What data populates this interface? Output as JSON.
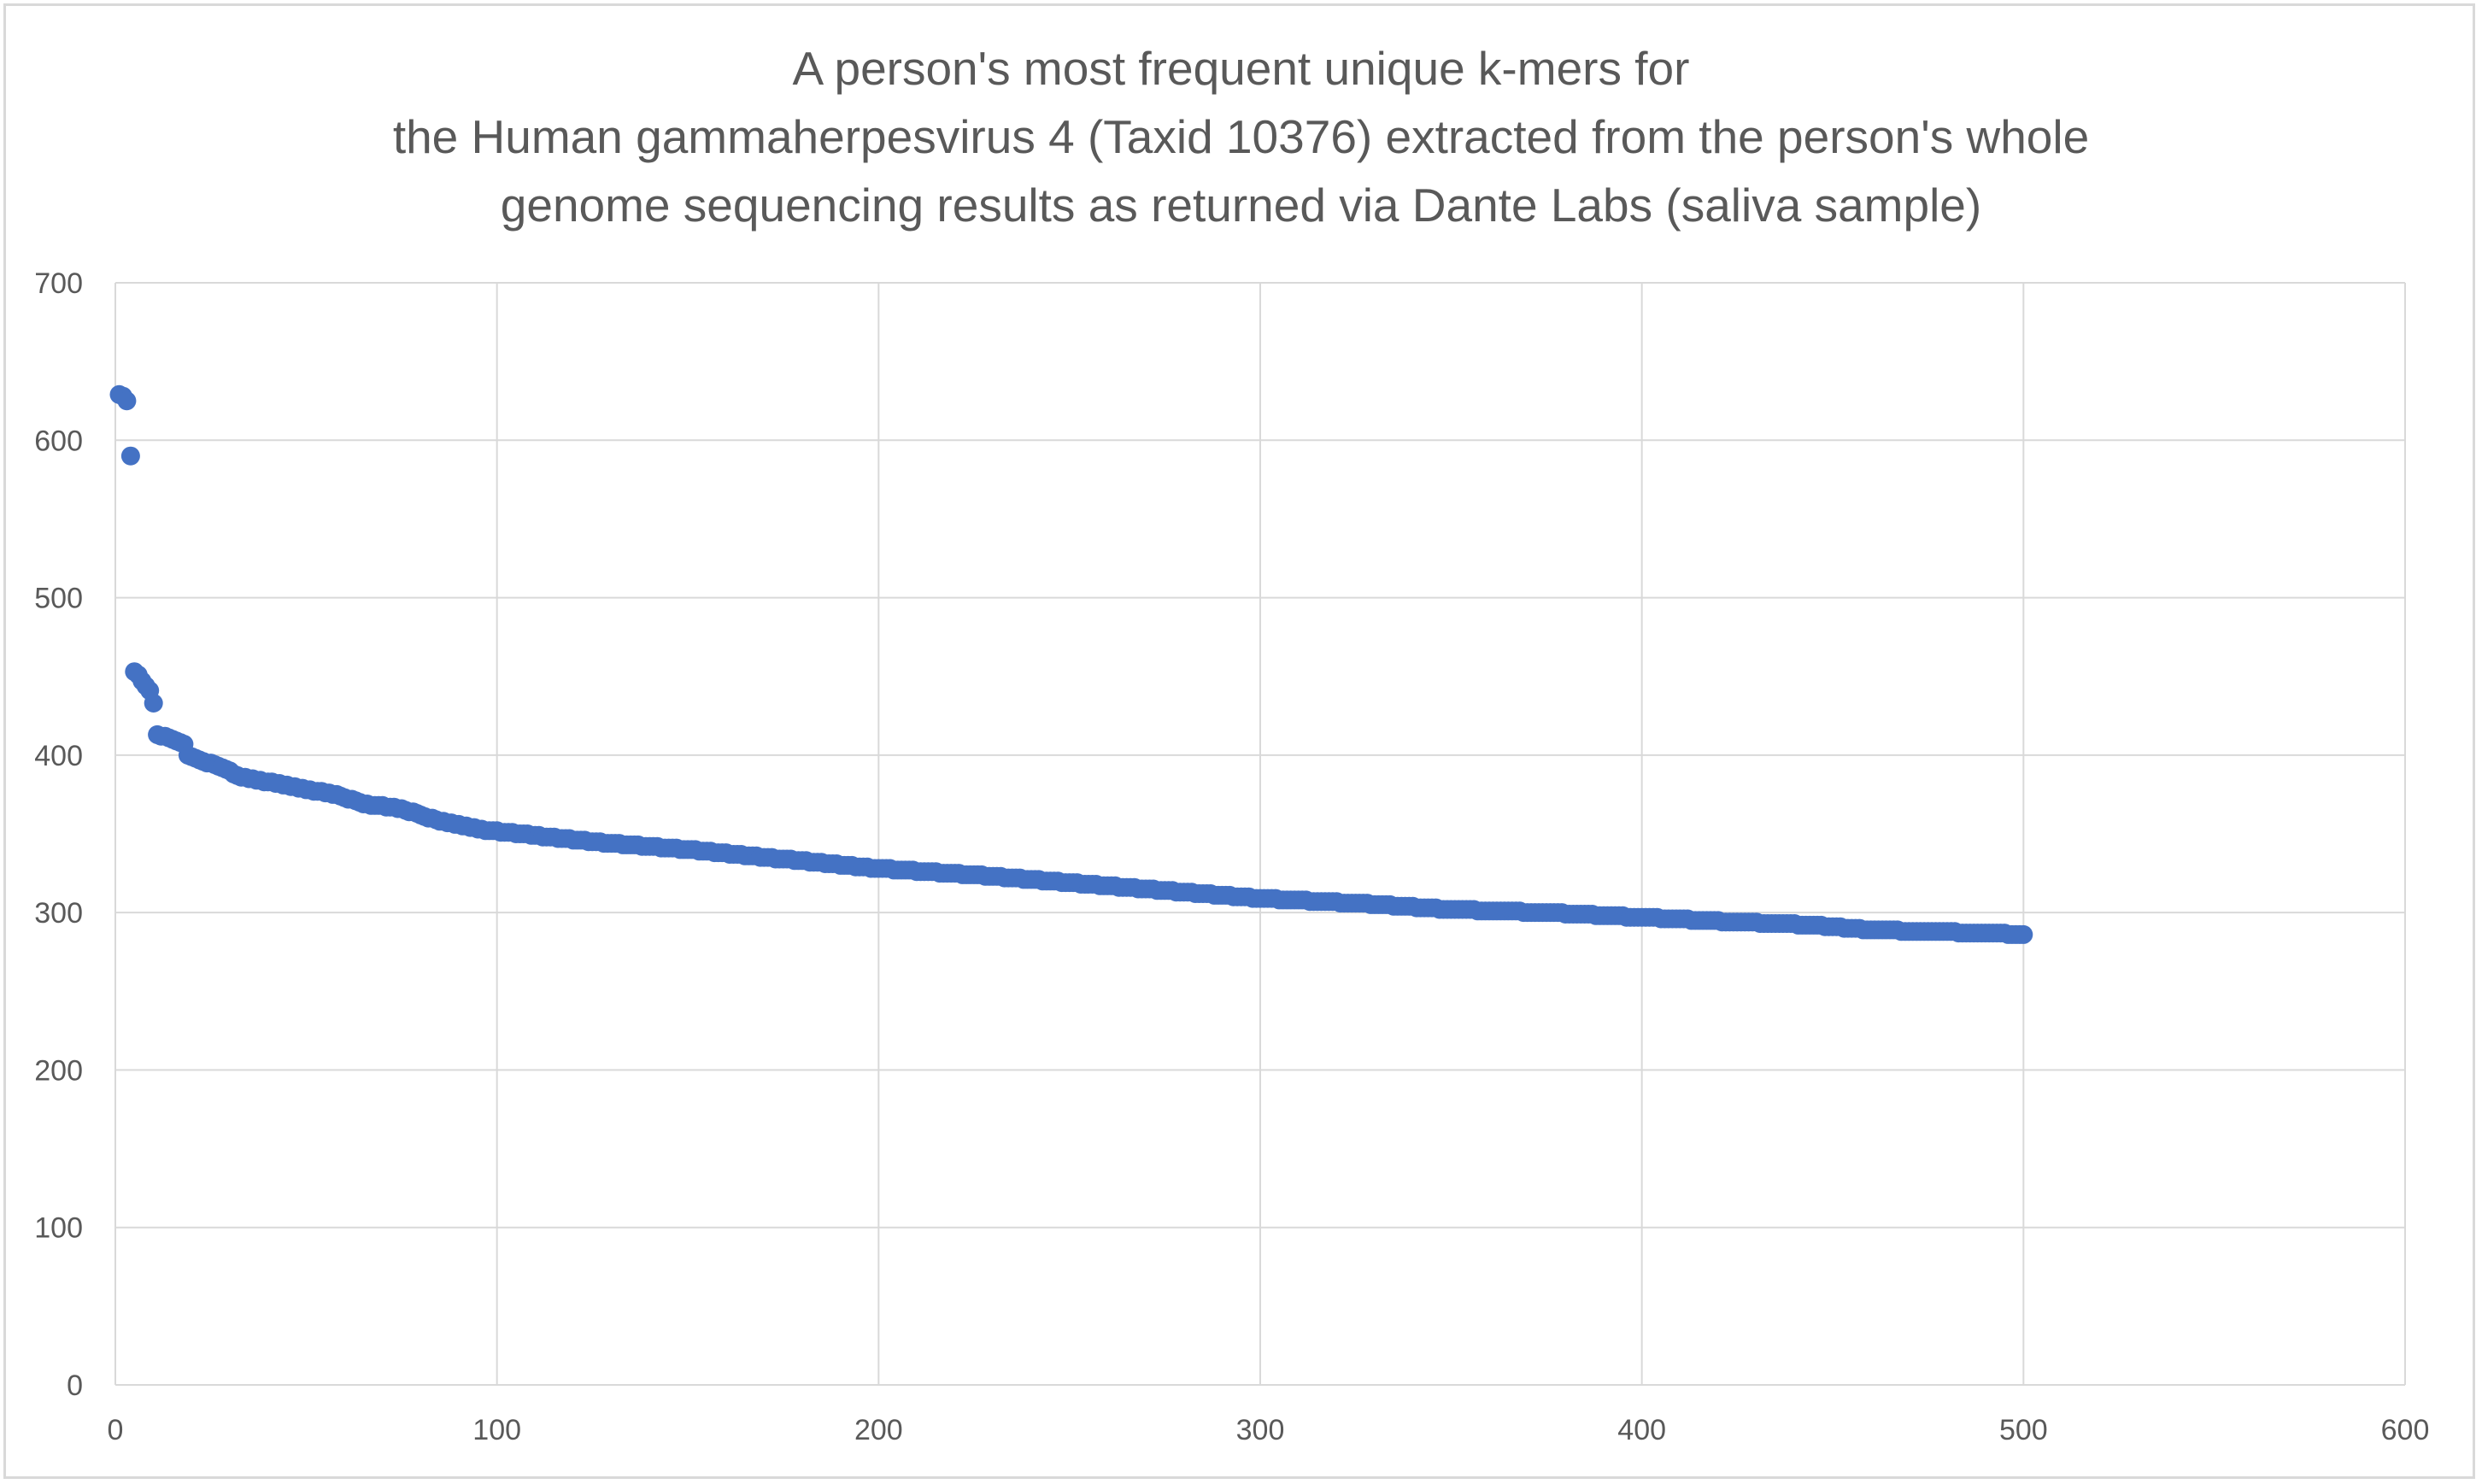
{
  "chart_data": {
    "type": "scatter",
    "title_lines": [
      "A person's most frequent unique k-mers for",
      "the Human gammaherpesvirus 4 (Taxid 10376) extracted from the person's whole",
      "genome sequencing results as returned via Dante Labs (saliva sample)"
    ],
    "xlabel": "",
    "ylabel": "",
    "xlim": [
      0,
      600
    ],
    "ylim": [
      0,
      700
    ],
    "x_ticks": [
      "0",
      "100",
      "200",
      "300",
      "400",
      "500",
      "600"
    ],
    "y_ticks": [
      "0",
      "100",
      "200",
      "300",
      "400",
      "500",
      "600",
      "700"
    ],
    "grid": true,
    "legend": "none",
    "marker_color": "#4472c4",
    "anchor_points": [
      [
        1,
        629
      ],
      [
        2,
        628
      ],
      [
        3,
        625
      ],
      [
        4,
        590
      ],
      [
        5,
        453
      ],
      [
        6,
        451
      ],
      [
        7,
        447
      ],
      [
        8,
        444
      ],
      [
        9,
        441
      ],
      [
        10,
        433
      ],
      [
        11,
        413
      ],
      [
        15,
        410
      ],
      [
        18,
        407
      ],
      [
        19,
        400
      ],
      [
        22,
        397
      ],
      [
        28,
        392
      ],
      [
        32,
        387
      ],
      [
        35,
        385
      ],
      [
        45,
        381
      ],
      [
        50,
        378
      ],
      [
        58,
        375
      ],
      [
        65,
        369
      ],
      [
        75,
        366
      ],
      [
        85,
        358
      ],
      [
        95,
        353
      ],
      [
        110,
        349
      ],
      [
        125,
        345
      ],
      [
        150,
        340
      ],
      [
        175,
        334
      ],
      [
        200,
        328
      ],
      [
        225,
        324
      ],
      [
        250,
        319
      ],
      [
        275,
        314
      ],
      [
        300,
        309
      ],
      [
        325,
        306
      ],
      [
        350,
        302
      ],
      [
        375,
        300
      ],
      [
        400,
        297
      ],
      [
        425,
        294
      ],
      [
        445,
        292
      ],
      [
        460,
        289
      ],
      [
        475,
        288
      ],
      [
        490,
        287
      ],
      [
        500,
        286
      ]
    ],
    "n_points": 500
  }
}
